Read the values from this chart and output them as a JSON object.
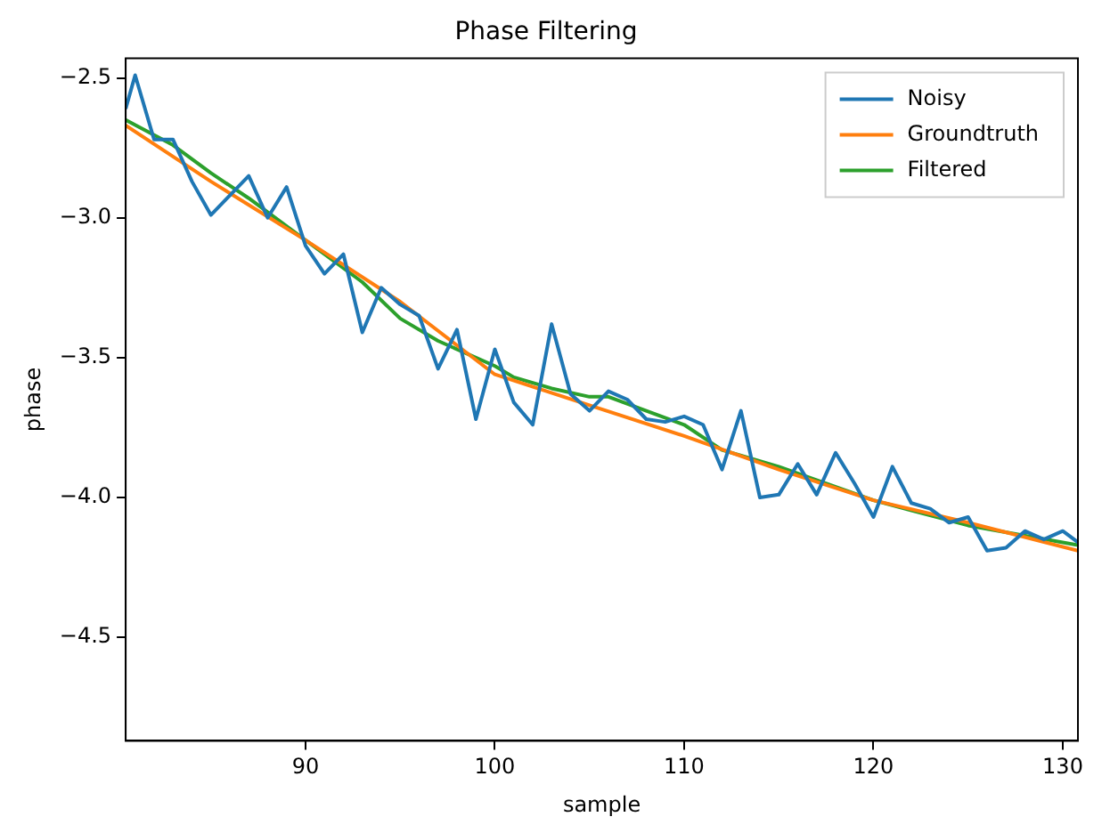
{
  "chart_data": {
    "type": "line",
    "title": "Phase Filtering",
    "xlabel": "sample",
    "ylabel": "phase",
    "xlim": [
      80.5,
      130.8
    ],
    "xticks": [
      90,
      100,
      110,
      120,
      130
    ],
    "ylim": [
      -4.87,
      -2.43
    ],
    "yticks": [
      -2.5,
      {
        "value": -3,
        "label": "−3.0"
      },
      -3.5,
      {
        "value": -4,
        "label": "−4.0"
      },
      -4.5
    ],
    "grid": false,
    "legend": "top right",
    "marker": "none",
    "line_style": "solid",
    "series": [
      {
        "name": "Noisy",
        "color": "#1f77b4",
        "x": [
          80.5,
          81,
          82,
          83,
          84,
          85,
          86,
          87,
          88,
          89,
          90,
          91,
          92,
          93,
          94,
          95,
          96,
          97,
          98,
          99,
          100,
          101,
          102,
          103,
          104,
          105,
          106,
          107,
          108,
          109,
          110,
          111,
          112,
          113,
          114,
          115,
          116,
          117,
          118,
          119,
          120,
          121,
          122,
          123,
          124,
          125,
          126,
          127,
          128,
          129,
          130,
          130.8
        ],
        "values": [
          -2.61,
          -2.49,
          -2.72,
          -2.72,
          -2.87,
          -2.99,
          -2.92,
          -2.85,
          -3.0,
          -2.89,
          -3.1,
          -3.2,
          -3.13,
          -3.41,
          -3.25,
          -3.31,
          -3.35,
          -3.54,
          -3.4,
          -3.72,
          -3.47,
          -3.66,
          -3.74,
          -3.38,
          -3.63,
          -3.69,
          -3.62,
          -3.65,
          -3.72,
          -3.73,
          -3.71,
          -3.74,
          -3.9,
          -3.69,
          -4.0,
          -3.99,
          -3.88,
          -3.99,
          -3.84,
          -3.95,
          -4.07,
          -3.89,
          -4.02,
          -4.04,
          -4.09,
          -4.07,
          -4.19,
          -4.18,
          -4.12,
          -4.15,
          -4.12,
          -4.16
        ]
      },
      {
        "name": "Groundtruth",
        "color": "#ff7f0e",
        "x": [
          80.5,
          85,
          90,
          95,
          100,
          105,
          110,
          115,
          120,
          125,
          130.8
        ],
        "values": [
          -2.67,
          -2.87,
          -3.08,
          -3.3,
          -3.56,
          -3.67,
          -3.78,
          -3.9,
          -4.01,
          -4.09,
          -4.19
        ]
      },
      {
        "name": "Filtered",
        "color": "#2ca02c",
        "x": [
          80.5,
          83,
          85,
          87,
          90,
          93,
          95,
          97,
          100,
          101,
          103,
          105,
          106,
          108,
          110,
          112,
          115,
          120,
          125,
          130.8
        ],
        "values": [
          -2.65,
          -2.74,
          -2.84,
          -2.93,
          -3.08,
          -3.23,
          -3.36,
          -3.44,
          -3.53,
          -3.57,
          -3.61,
          -3.64,
          -3.64,
          -3.69,
          -3.74,
          -3.83,
          -3.89,
          -4.01,
          -4.1,
          -4.17
        ]
      }
    ]
  }
}
